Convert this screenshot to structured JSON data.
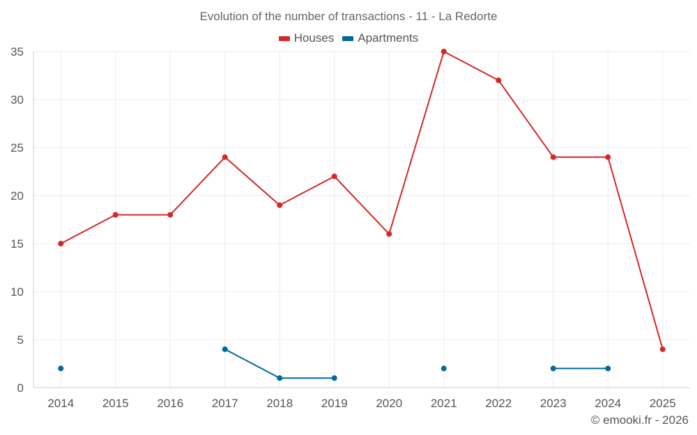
{
  "chart_data": {
    "type": "line",
    "title": "Evolution of the number of transactions - 11 - La Redorte",
    "x": [
      "2014",
      "2015",
      "2016",
      "2017",
      "2018",
      "2019",
      "2020",
      "2021",
      "2022",
      "2023",
      "2024",
      "2025"
    ],
    "series": [
      {
        "name": "Houses",
        "color": "#d62728",
        "values": [
          15,
          18,
          18,
          24,
          19,
          22,
          16,
          35,
          32,
          24,
          24,
          4
        ]
      },
      {
        "name": "Apartments",
        "color": "#0068a0",
        "values": [
          2,
          null,
          null,
          4,
          1,
          1,
          null,
          2,
          null,
          2,
          2,
          null
        ]
      }
    ],
    "yticks": [
      "0",
      "5",
      "10",
      "15",
      "20",
      "25",
      "30",
      "35"
    ],
    "ylim": [
      0,
      35
    ],
    "grid": true,
    "legend": "top-center",
    "xlabel": "",
    "ylabel": ""
  },
  "credit": "© emooki.fr - 2026",
  "colors": {
    "grid": "#ececec",
    "axis": "#cccccc",
    "tick_text": "#555555"
  }
}
